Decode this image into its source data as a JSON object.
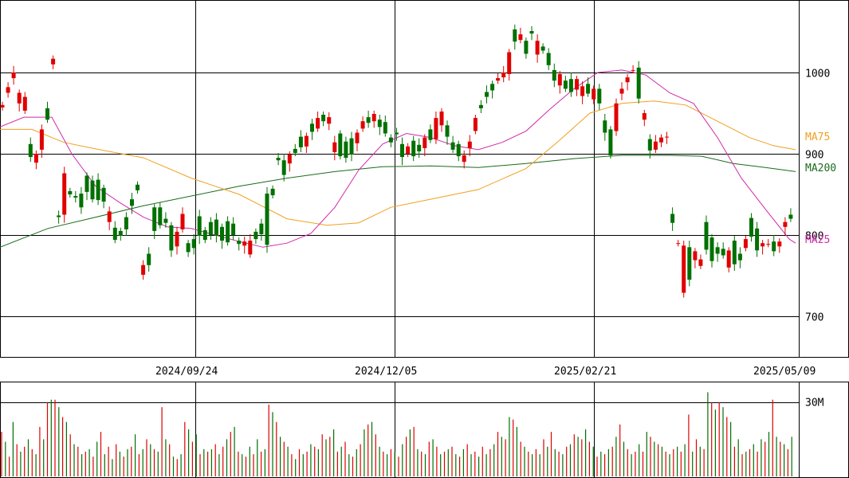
{
  "chart_data": {
    "type": "candlestick",
    "price_axis": {
      "ticks": [
        700,
        800,
        900,
        1000
      ],
      "labels": [
        "700",
        "800",
        "900",
        "1000"
      ],
      "ylim": [
        648,
        1090
      ]
    },
    "date_labels": [
      "2024/09/24",
      "2024/12/05",
      "2025/02/21",
      "2025/05/09"
    ],
    "legend": [
      {
        "label": "MA75",
        "color": "#f0a020"
      },
      {
        "label": "MA200",
        "color": "#1a6b1a"
      },
      {
        "label": "MA25",
        "color": "#d02aa8"
      }
    ],
    "volume_axis": {
      "ticks": [
        30
      ],
      "labels": [
        "30M"
      ],
      "ylim": [
        0,
        38
      ]
    },
    "colors": {
      "up": "#e00000",
      "down": "#007000",
      "grid": "#000000"
    },
    "series": [
      {
        "name": "MA200",
        "values": [
          [
            0,
            785
          ],
          [
            60,
            808
          ],
          [
            120,
            822
          ],
          [
            180,
            836
          ],
          [
            240,
            848
          ],
          [
            300,
            860
          ],
          [
            360,
            870
          ],
          [
            420,
            878
          ],
          [
            480,
            884
          ],
          [
            540,
            885
          ],
          [
            600,
            883
          ],
          [
            660,
            888
          ],
          [
            720,
            894
          ],
          [
            780,
            898
          ],
          [
            840,
            898
          ],
          [
            880,
            897
          ],
          [
            920,
            888
          ],
          [
            960,
            883
          ],
          [
            998,
            878
          ]
        ]
      },
      {
        "name": "MA75",
        "values": [
          [
            0,
            930
          ],
          [
            40,
            930
          ],
          [
            80,
            914
          ],
          [
            120,
            906
          ],
          [
            180,
            895
          ],
          [
            240,
            870
          ],
          [
            300,
            850
          ],
          [
            360,
            820
          ],
          [
            410,
            812
          ],
          [
            450,
            815
          ],
          [
            490,
            834
          ],
          [
            540,
            844
          ],
          [
            600,
            856
          ],
          [
            660,
            882
          ],
          [
            700,
            915
          ],
          [
            740,
            950
          ],
          [
            780,
            962
          ],
          [
            820,
            965
          ],
          [
            860,
            960
          ],
          [
            900,
            940
          ],
          [
            940,
            920
          ],
          [
            970,
            910
          ],
          [
            998,
            905
          ]
        ]
      },
      {
        "name": "MA25",
        "values": [
          [
            0,
            933
          ],
          [
            30,
            945
          ],
          [
            65,
            945
          ],
          [
            90,
            900
          ],
          [
            120,
            860
          ],
          [
            150,
            840
          ],
          [
            180,
            822
          ],
          [
            210,
            810
          ],
          [
            240,
            808
          ],
          [
            270,
            800
          ],
          [
            300,
            792
          ],
          [
            330,
            785
          ],
          [
            360,
            790
          ],
          [
            390,
            802
          ],
          [
            420,
            834
          ],
          [
            450,
            880
          ],
          [
            480,
            912
          ],
          [
            510,
            925
          ],
          [
            540,
            920
          ],
          [
            570,
            910
          ],
          [
            600,
            905
          ],
          [
            630,
            914
          ],
          [
            660,
            928
          ],
          [
            690,
            955
          ],
          [
            720,
            980
          ],
          [
            750,
            1000
          ],
          [
            780,
            1003
          ],
          [
            810,
            997
          ],
          [
            840,
            975
          ],
          [
            870,
            962
          ],
          [
            900,
            920
          ],
          [
            930,
            870
          ],
          [
            960,
            832
          ],
          [
            990,
            795
          ],
          [
            998,
            790
          ]
        ]
      }
    ],
    "candles": [
      [
        957,
        960
      ],
      [
        975,
        982
      ],
      [
        993,
        1000
      ],
      [
        962,
        975
      ],
      [
        953,
        970
      ],
      [
        912,
        896
      ],
      [
        889,
        900
      ],
      [
        905,
        930
      ],
      [
        956,
        942
      ],
      [
        1010,
        1017
      ],
      [
        824,
        822
      ],
      [
        825,
        876
      ],
      [
        854,
        850
      ],
      [
        848,
        846
      ],
      [
        851,
        834
      ],
      [
        873,
        853
      ],
      [
        867,
        844
      ],
      [
        868,
        843
      ],
      [
        858,
        841
      ],
      [
        816,
        829
      ],
      [
        809,
        794
      ],
      [
        805,
        799
      ],
      [
        822,
        807
      ],
      [
        844,
        836
      ],
      [
        862,
        855
      ],
      [
        751,
        763
      ],
      [
        777,
        763
      ],
      [
        834,
        805
      ],
      [
        834,
        812
      ],
      [
        820,
        815
      ],
      [
        812,
        781
      ],
      [
        786,
        804
      ],
      [
        807,
        826
      ],
      [
        790,
        779
      ],
      [
        795,
        784
      ],
      [
        823,
        799
      ],
      [
        806,
        794
      ],
      [
        816,
        800
      ],
      [
        819,
        799
      ],
      [
        810,
        793
      ],
      [
        817,
        791
      ],
      [
        814,
        800
      ],
      [
        793,
        789
      ],
      [
        787,
        792
      ],
      [
        776,
        793
      ],
      [
        804,
        795
      ],
      [
        814,
        801
      ],
      [
        851,
        788
      ],
      [
        857,
        849
      ],
      [
        895,
        892
      ],
      [
        892,
        874
      ],
      [
        888,
        899
      ],
      [
        906,
        901
      ],
      [
        921,
        908
      ],
      [
        909,
        922
      ],
      [
        937,
        927
      ],
      [
        931,
        944
      ],
      [
        948,
        940
      ],
      [
        937,
        945
      ],
      [
        902,
        914
      ],
      [
        925,
        897
      ],
      [
        915,
        895
      ],
      [
        919,
        899
      ],
      [
        913,
        926
      ],
      [
        931,
        940
      ],
      [
        945,
        938
      ],
      [
        940,
        949
      ],
      [
        942,
        933
      ],
      [
        939,
        925
      ],
      [
        920,
        914
      ],
      [
        926,
        924
      ],
      [
        912,
        896
      ],
      [
        900,
        909
      ],
      [
        916,
        897
      ],
      [
        911,
        903
      ],
      [
        907,
        920
      ],
      [
        930,
        917
      ],
      [
        918,
        944
      ],
      [
        935,
        952
      ],
      [
        935,
        921
      ],
      [
        914,
        905
      ],
      [
        912,
        897
      ],
      [
        890,
        898
      ],
      [
        907,
        915
      ],
      [
        928,
        944
      ],
      [
        960,
        956
      ],
      [
        976,
        970
      ],
      [
        986,
        978
      ],
      [
        990,
        993
      ],
      [
        994,
        1000
      ],
      [
        998,
        1025
      ],
      [
        1053,
        1038
      ],
      [
        1040,
        1047
      ],
      [
        1039,
        1023
      ],
      [
        1051,
        1048
      ],
      [
        1022,
        1039
      ],
      [
        1032,
        1027
      ],
      [
        1024,
        1009
      ],
      [
        1003,
        990
      ],
      [
        984,
        998
      ],
      [
        990,
        980
      ],
      [
        992,
        976
      ],
      [
        979,
        992
      ],
      [
        971,
        983
      ],
      [
        986,
        974
      ],
      [
        967,
        980
      ],
      [
        980,
        962
      ],
      [
        941,
        926
      ],
      [
        930,
        898
      ],
      [
        928,
        962
      ],
      [
        974,
        980
      ],
      [
        988,
        994
      ],
      [
        1003,
        1003
      ],
      [
        1006,
        968
      ],
      [
        942,
        950
      ],
      [
        918,
        904
      ],
      [
        905,
        915
      ],
      [
        914,
        920
      ],
      [
        920,
        921
      ],
      [
        826,
        815
      ],
      [
        790,
        790
      ],
      [
        729,
        787
      ],
      [
        785,
        745
      ],
      [
        769,
        780
      ],
      [
        762,
        770
      ],
      [
        816,
        782
      ],
      [
        797,
        768
      ],
      [
        785,
        777
      ],
      [
        783,
        775
      ],
      [
        760,
        781
      ],
      [
        793,
        764
      ],
      [
        777,
        769
      ],
      [
        784,
        795
      ],
      [
        821,
        798
      ],
      [
        808,
        781
      ],
      [
        786,
        790
      ],
      [
        789,
        789
      ],
      [
        792,
        780
      ],
      [
        786,
        792
      ],
      [
        810,
        816
      ],
      [
        825,
        820
      ]
    ],
    "volume": [
      18,
      14,
      8,
      22,
      13,
      10,
      12,
      15,
      11,
      9,
      20,
      15,
      30,
      31,
      31,
      28,
      24,
      22,
      17,
      13,
      12,
      9,
      10,
      11,
      8,
      14,
      18,
      9,
      12,
      7,
      13,
      10,
      8,
      11,
      12,
      17,
      9,
      11,
      15,
      13,
      11,
      10,
      28,
      15,
      13,
      8,
      7,
      9,
      22,
      19,
      14,
      17,
      9,
      11,
      10,
      11,
      13,
      9,
      12,
      15,
      18,
      20,
      10,
      9,
      8,
      12,
      9,
      15,
      10,
      11,
      29,
      26,
      22,
      16,
      14,
      12,
      9,
      7,
      11,
      9,
      10,
      13,
      12,
      11,
      17,
      15,
      16,
      19,
      10,
      12,
      14,
      9,
      8,
      11,
      13,
      19,
      21,
      22,
      17,
      12,
      10,
      9,
      11,
      10,
      8,
      13,
      16,
      19,
      20,
      11,
      10,
      9,
      14,
      15,
      12,
      9,
      10,
      11,
      12,
      9,
      8,
      11,
      13,
      9,
      10,
      8,
      12,
      9,
      11,
      13,
      18,
      16,
      15,
      24,
      23,
      20,
      14,
      12,
      10,
      9,
      11,
      9,
      15,
      12,
      18,
      11,
      10,
      9,
      12,
      13,
      17,
      16,
      15,
      19,
      14,
      12,
      8,
      10,
      9,
      11,
      12,
      16,
      21,
      14,
      11,
      9,
      10,
      13,
      10,
      18,
      16,
      14,
      13,
      12,
      10,
      9,
      11,
      12,
      10,
      13,
      25,
      10,
      15,
      12,
      11,
      34,
      30,
      27,
      30,
      28,
      24,
      22,
      12,
      15,
      9,
      10,
      11,
      13,
      10,
      15,
      14,
      18,
      31,
      16,
      14,
      13,
      11,
      16
    ],
    "volume_colors_up_ratio": 0.5
  }
}
